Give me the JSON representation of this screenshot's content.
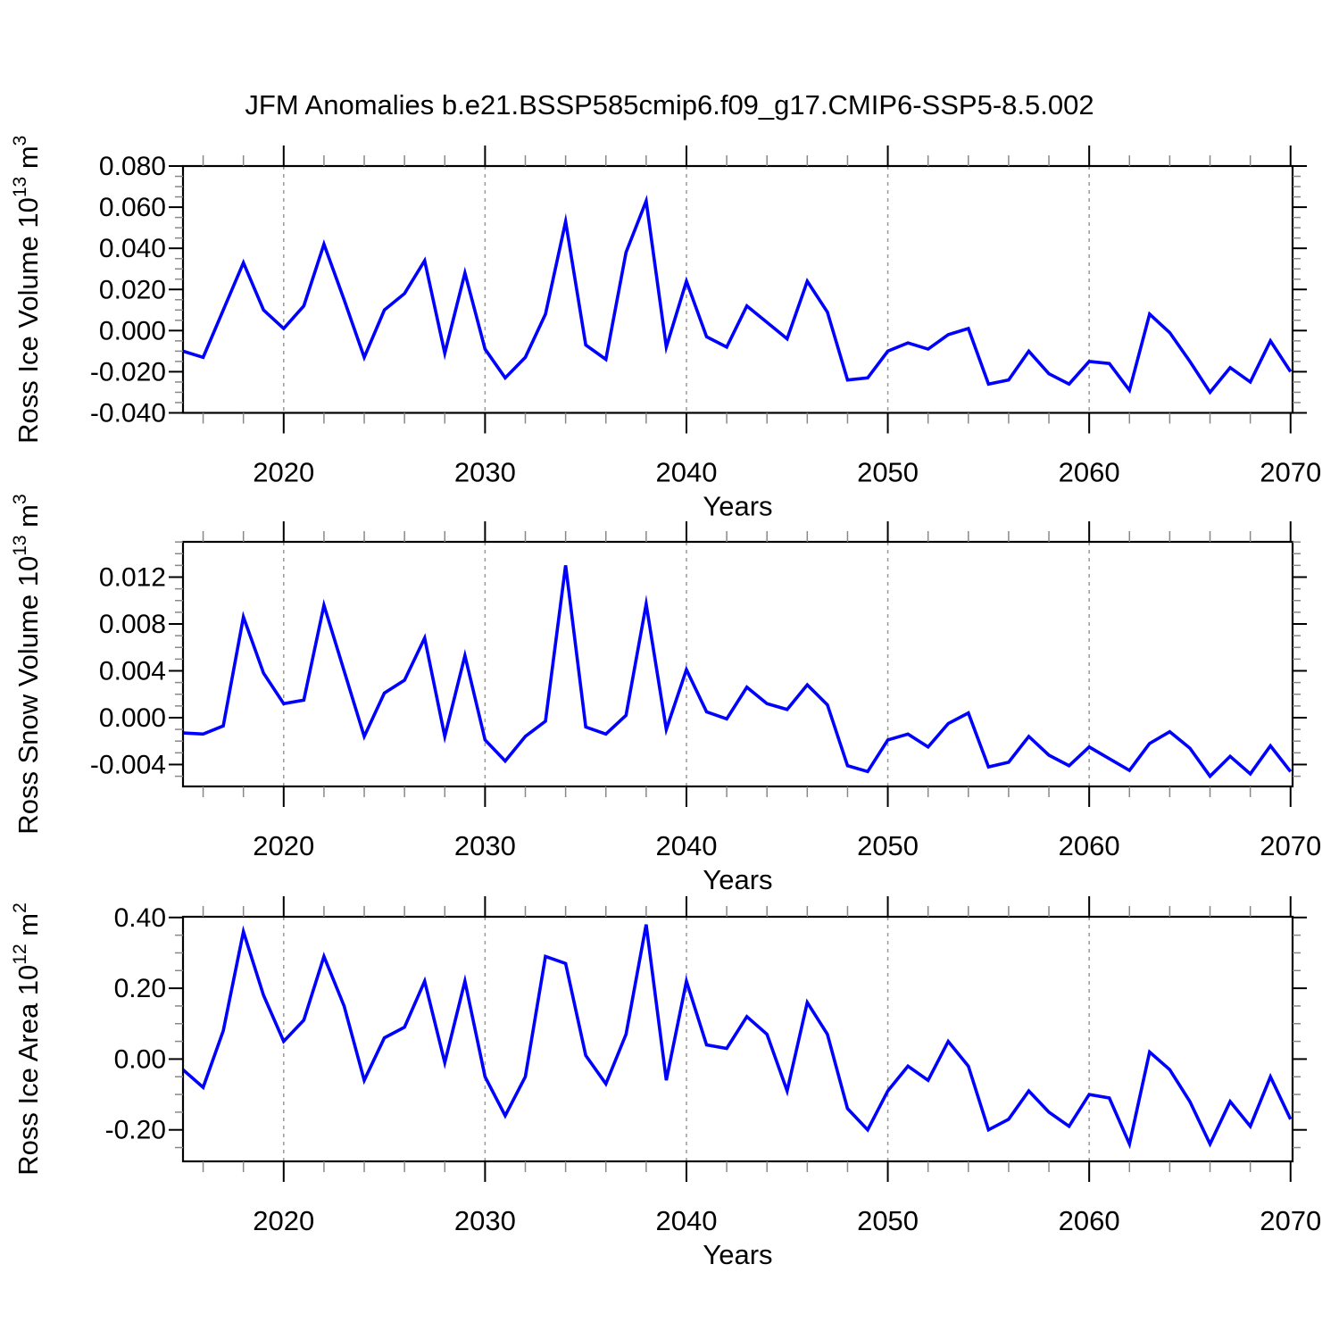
{
  "title": "JFM Anomalies b.e21.BSSP585cmip6.f09_g17.CMIP6-SSP5-8.5.002",
  "chart_data": {
    "type": "line",
    "title": "JFM Anomalies b.e21.BSSP585cmip6.f09_g17.CMIP6-SSP5-8.5.002",
    "line_color": "#0000ff",
    "grid_color": "#999999",
    "minor_tick_color": "#888888",
    "axis_color": "#000000",
    "x": [
      2015,
      2016,
      2017,
      2018,
      2019,
      2020,
      2021,
      2022,
      2023,
      2024,
      2025,
      2026,
      2027,
      2028,
      2029,
      2030,
      2031,
      2032,
      2033,
      2034,
      2035,
      2036,
      2037,
      2038,
      2039,
      2040,
      2041,
      2042,
      2043,
      2044,
      2045,
      2046,
      2047,
      2048,
      2049,
      2050,
      2051,
      2052,
      2053,
      2054,
      2055,
      2056,
      2057,
      2058,
      2059,
      2060,
      2061,
      2062,
      2063,
      2064,
      2065,
      2066,
      2067,
      2068,
      2069,
      2070
    ],
    "xlabel": "Years",
    "xlim": [
      2015,
      2070.1
    ],
    "xticks": [
      2020,
      2030,
      2040,
      2050,
      2060,
      2070
    ],
    "xtick_labels": [
      "2020",
      "2030",
      "2040",
      "2050",
      "2060",
      "2070"
    ],
    "x_minor_step": 2,
    "grid_years": [
      2020,
      2030,
      2040,
      2050,
      2060
    ],
    "grid_dashed": true,
    "legend": "none",
    "panels": [
      {
        "name": "ross-ice-volume",
        "ylabel": "Ross Ice Volume 10^13 m^3",
        "ylabel_parts": [
          {
            "t": "Ross Ice Volume 10"
          },
          {
            "t": "13",
            "sup": true
          },
          {
            "t": " m"
          },
          {
            "t": "3",
            "sup": true
          }
        ],
        "ylim": [
          -0.04,
          0.08
        ],
        "yticks": [
          0.08,
          0.06,
          0.04,
          0.02,
          0.0,
          -0.02,
          -0.04
        ],
        "ytick_labels": [
          "0.080",
          "0.060",
          "0.040",
          "0.020",
          "0.000",
          "-0.020",
          "-0.040"
        ],
        "y_minor_step": 0.005,
        "values": [
          -0.01,
          -0.013,
          0.01,
          0.033,
          0.01,
          0.001,
          0.012,
          0.042,
          0.015,
          -0.013,
          0.01,
          0.018,
          0.034,
          -0.011,
          0.028,
          -0.009,
          -0.023,
          -0.013,
          0.008,
          0.053,
          -0.007,
          -0.014,
          0.038,
          0.063,
          -0.008,
          0.024,
          -0.003,
          -0.008,
          0.012,
          0.004,
          -0.004,
          0.024,
          0.009,
          -0.024,
          -0.023,
          -0.01,
          -0.006,
          -0.009,
          -0.002,
          0.001,
          -0.026,
          -0.024,
          -0.01,
          -0.021,
          -0.026,
          -0.015,
          -0.016,
          -0.029,
          0.008,
          -0.001,
          -0.015,
          -0.03,
          -0.018,
          -0.025,
          -0.005,
          -0.02
        ]
      },
      {
        "name": "ross-snow-volume",
        "ylabel": "Ross Snow Volume 10^13 m^3",
        "ylabel_parts": [
          {
            "t": "Ross Snow Volume 10"
          },
          {
            "t": "13",
            "sup": true
          },
          {
            "t": " m"
          },
          {
            "t": "3",
            "sup": true
          }
        ],
        "ylim": [
          -0.00587,
          0.01501
        ],
        "yticks": [
          0.012,
          0.008,
          0.004,
          0.0,
          -0.004
        ],
        "ytick_labels": [
          "0.012",
          "0.008",
          "0.004",
          "0.000",
          "-0.004"
        ],
        "y_minor_step": 0.001,
        "values": [
          -0.0013,
          -0.0014,
          -0.0007,
          0.0086,
          0.0038,
          0.0012,
          0.0015,
          0.0096,
          0.004,
          -0.0016,
          0.0021,
          0.0032,
          0.0068,
          -0.0016,
          0.0053,
          -0.0019,
          -0.0037,
          -0.0016,
          -0.0003,
          0.013,
          -0.0008,
          -0.0014,
          0.0002,
          0.0097,
          -0.001,
          0.0041,
          0.0005,
          -0.0001,
          0.0026,
          0.0012,
          0.0007,
          0.0028,
          0.0011,
          -0.0041,
          -0.0046,
          -0.0019,
          -0.0014,
          -0.0025,
          -0.0005,
          0.0004,
          -0.0042,
          -0.0038,
          -0.0016,
          -0.0032,
          -0.0041,
          -0.0025,
          -0.0035,
          -0.0045,
          -0.0022,
          -0.0012,
          -0.0026,
          -0.005,
          -0.0033,
          -0.0048,
          -0.0024,
          -0.0046
        ]
      },
      {
        "name": "ross-ice-area",
        "ylabel": "Ross Ice Area 10^12 m^2",
        "ylabel_parts": [
          {
            "t": "Ross Ice Area 10"
          },
          {
            "t": "12",
            "sup": true
          },
          {
            "t": " m"
          },
          {
            "t": "2",
            "sup": true
          }
        ],
        "ylim": [
          -0.289,
          0.402
        ],
        "yticks": [
          0.4,
          0.2,
          0.0,
          -0.2
        ],
        "ytick_labels": [
          "0.40",
          "0.20",
          "0.00",
          "-0.20"
        ],
        "y_minor_step": 0.05,
        "values": [
          -0.03,
          -0.08,
          0.08,
          0.36,
          0.18,
          0.05,
          0.11,
          0.29,
          0.15,
          -0.06,
          0.06,
          0.09,
          0.22,
          -0.01,
          0.22,
          -0.05,
          -0.16,
          -0.05,
          0.29,
          0.27,
          0.01,
          -0.07,
          0.07,
          0.38,
          -0.06,
          0.22,
          0.04,
          0.03,
          0.12,
          0.07,
          -0.09,
          0.16,
          0.07,
          -0.14,
          -0.2,
          -0.09,
          -0.02,
          -0.06,
          0.05,
          -0.02,
          -0.2,
          -0.17,
          -0.09,
          -0.15,
          -0.19,
          -0.1,
          -0.11,
          -0.24,
          0.02,
          -0.03,
          -0.12,
          -0.24,
          -0.12,
          -0.19,
          -0.05,
          -0.17
        ]
      }
    ]
  }
}
